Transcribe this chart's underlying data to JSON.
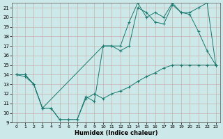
{
  "xlabel": "Humidex (Indice chaleur)",
  "xlim": [
    -0.5,
    23.5
  ],
  "ylim": [
    9,
    21.5
  ],
  "yticks": [
    9,
    10,
    11,
    12,
    13,
    14,
    15,
    16,
    17,
    18,
    19,
    20,
    21
  ],
  "xticks": [
    0,
    1,
    2,
    3,
    4,
    5,
    6,
    7,
    8,
    9,
    10,
    11,
    12,
    13,
    14,
    15,
    16,
    17,
    18,
    19,
    20,
    21,
    22,
    23
  ],
  "line_color": "#1a7a6e",
  "bg_color": "#cce8e8",
  "grid_color": "#b0d4d4",
  "lines": [
    {
      "x": [
        0,
        1,
        2,
        3,
        10,
        11,
        12,
        13,
        14,
        15,
        16,
        17,
        18,
        19,
        20,
        21,
        22,
        23
      ],
      "y": [
        14,
        13.8,
        13,
        10.5,
        17,
        17,
        17,
        19.5,
        21.5,
        20,
        20.5,
        20,
        21.5,
        20.5,
        20.5,
        21,
        21.5,
        15
      ]
    },
    {
      "x": [
        0,
        1,
        2,
        3,
        4,
        5,
        6,
        7,
        8,
        9,
        10,
        11,
        12,
        13,
        14,
        15,
        16,
        17,
        18,
        19,
        20,
        21,
        22,
        23
      ],
      "y": [
        14,
        14,
        13,
        10.5,
        10.5,
        9.3,
        9.3,
        9.3,
        11.7,
        11.2,
        17,
        17,
        16.5,
        17,
        21,
        20.5,
        19.5,
        19.3,
        21.3,
        20.5,
        20.3,
        18.5,
        16.5,
        15
      ]
    },
    {
      "x": [
        0,
        1,
        2,
        3,
        4,
        5,
        6,
        7,
        8,
        9,
        10,
        11,
        12,
        13,
        14,
        15,
        16,
        17,
        18,
        19,
        20,
        21,
        22,
        23
      ],
      "y": [
        14,
        14,
        13,
        10.5,
        10.5,
        9.3,
        9.3,
        9.3,
        11.5,
        12.0,
        11.5,
        12,
        12.3,
        12.7,
        13.3,
        13.8,
        14.2,
        14.7,
        15,
        15,
        15,
        15,
        15,
        15
      ]
    }
  ]
}
